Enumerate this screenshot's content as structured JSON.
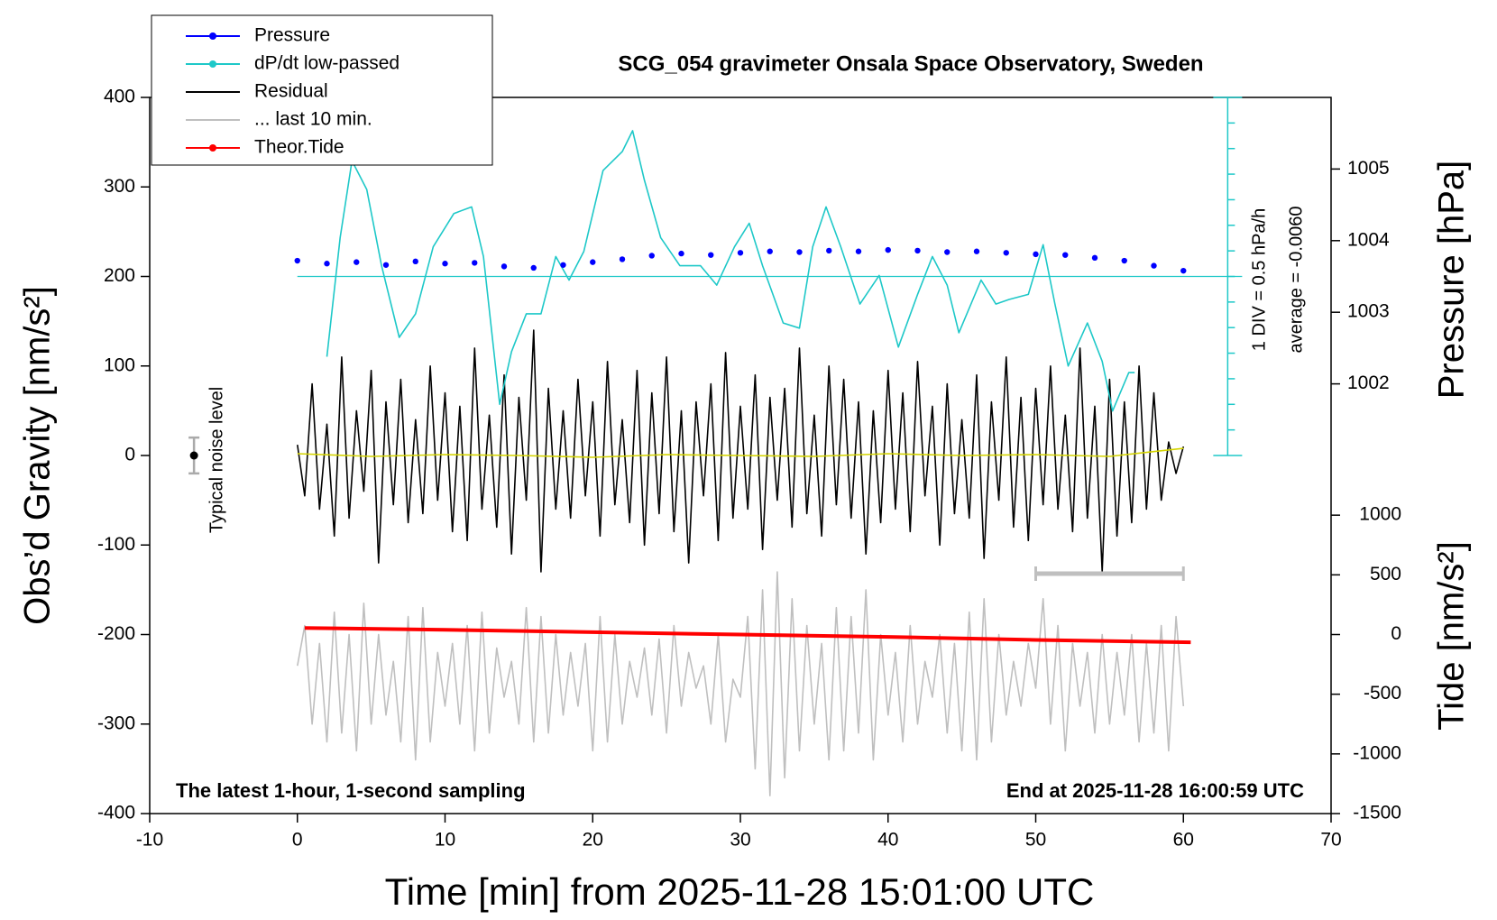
{
  "chart_data": {
    "type": "line",
    "title": "SCG_054 gravimeter Onsala Space Observatory, Sweden",
    "x_label": "Time [min] from 2025-11-28 15:01:00 UTC",
    "y_label": "Obs’d Gravity [nm/s²]",
    "y2_label": "Pressure [hPa]",
    "tide_label": "Tide [nm/s²]",
    "annotations": {
      "noise": "Typical noise level",
      "div": "1 DIV = 0.5 hPa/h",
      "average": "average = -0.0060",
      "bottom_left": "The latest 1-hour, 1-second sampling",
      "bottom_right": "End at 2025-11-28 16:00:59 UTC"
    },
    "xlim": [
      -10,
      70
    ],
    "xticks": [
      -10,
      0,
      10,
      20,
      30,
      40,
      50,
      60,
      70
    ],
    "ylim": [
      -400,
      400
    ],
    "yticks": [
      -400,
      -300,
      -200,
      -100,
      0,
      100,
      200,
      300,
      400
    ],
    "y2lim": [
      996,
      1006
    ],
    "y2ticks": [
      1002,
      1003,
      1004,
      1005
    ],
    "tide_lim": [
      -1500,
      4500
    ],
    "tide_ticks": [
      -1500,
      -1000,
      -500,
      0,
      500,
      1000
    ],
    "dpdt_lim": [
      -3.5,
      3.5
    ],
    "dpdt_ticks": [
      -3.5,
      -3,
      -2.5,
      -2,
      -1.5,
      -1,
      -0.5,
      0,
      0.5,
      1,
      1.5,
      2,
      2.5,
      3,
      3.5
    ],
    "dpdt_axis_x": 63,
    "noise": {
      "x": -7,
      "value": 0,
      "error": 20
    },
    "last10_bar": {
      "x": [
        50,
        60
      ],
      "y": -132
    },
    "series": [
      {
        "name": "... last 10 min.",
        "color": "#bfbfbf",
        "axis": "y",
        "x": [
          0,
          0.5,
          1,
          1.5,
          2,
          2.5,
          3,
          3.5,
          4,
          4.5,
          5,
          5.5,
          6,
          6.5,
          7,
          7.5,
          8,
          8.5,
          9,
          9.5,
          10,
          10.5,
          11,
          11.5,
          12,
          12.5,
          13,
          13.5,
          14,
          14.5,
          15,
          15.5,
          16,
          16.5,
          17,
          17.5,
          18,
          18.5,
          19,
          19.5,
          20,
          20.5,
          21,
          21.5,
          22,
          22.5,
          23,
          23.5,
          24,
          24.5,
          25,
          25.5,
          26,
          26.5,
          27,
          27.5,
          28,
          28.5,
          29,
          29.5,
          30,
          30.5,
          31,
          31.5,
          32,
          32.5,
          33,
          33.5,
          34,
          34.5,
          35,
          35.5,
          36,
          36.5,
          37,
          37.5,
          38,
          38.5,
          39,
          39.5,
          40,
          40.5,
          41,
          41.5,
          42,
          42.5,
          43,
          43.5,
          44,
          44.5,
          45,
          45.5,
          46,
          46.5,
          47,
          47.5,
          48,
          48.5,
          49,
          49.5,
          50,
          50.5,
          51,
          51.5,
          52,
          52.5,
          53,
          53.5,
          54,
          54.5,
          55,
          55.5,
          56,
          56.5,
          57,
          57.5,
          58,
          58.5,
          59,
          59.5,
          60
        ],
        "values": [
          -235,
          -190,
          -300,
          -210,
          -320,
          -175,
          -310,
          -200,
          -330,
          -165,
          -300,
          -200,
          -290,
          -230,
          -320,
          -180,
          -340,
          -170,
          -320,
          -220,
          -280,
          -210,
          -300,
          -190,
          -330,
          -175,
          -310,
          -215,
          -270,
          -230,
          -300,
          -170,
          -320,
          -180,
          -310,
          -200,
          -290,
          -220,
          -280,
          -210,
          -330,
          -180,
          -320,
          -200,
          -300,
          -230,
          -270,
          -215,
          -290,
          -205,
          -310,
          -190,
          -280,
          -220,
          -260,
          -235,
          -300,
          -200,
          -320,
          -250,
          -270,
          -180,
          -350,
          -150,
          -380,
          -130,
          -360,
          -160,
          -330,
          -190,
          -300,
          -210,
          -340,
          -170,
          -330,
          -180,
          -310,
          -150,
          -340,
          -200,
          -290,
          -220,
          -320,
          -190,
          -300,
          -230,
          -270,
          -200,
          -310,
          -210,
          -330,
          -175,
          -340,
          -160,
          -320,
          -200,
          -290,
          -230,
          -280,
          -210,
          -260,
          -160,
          -300,
          -190,
          -330,
          -210,
          -280,
          -220,
          -310,
          -200,
          -300,
          -220,
          -290,
          -200,
          -320,
          -210,
          -310,
          -190,
          -330,
          -180,
          -280
        ]
      },
      {
        "name": "Residual",
        "color": "#000000",
        "axis": "y",
        "x": [
          0,
          0.5,
          1,
          1.5,
          2,
          2.5,
          3,
          3.5,
          4,
          4.5,
          5,
          5.5,
          6,
          6.5,
          7,
          7.5,
          8,
          8.5,
          9,
          9.5,
          10,
          10.5,
          11,
          11.5,
          12,
          12.5,
          13,
          13.5,
          14,
          14.5,
          15,
          15.5,
          16,
          16.5,
          17,
          17.5,
          18,
          18.5,
          19,
          19.5,
          20,
          20.5,
          21,
          21.5,
          22,
          22.5,
          23,
          23.5,
          24,
          24.5,
          25,
          25.5,
          26,
          26.5,
          27,
          27.5,
          28,
          28.5,
          29,
          29.5,
          30,
          30.5,
          31,
          31.5,
          32,
          32.5,
          33,
          33.5,
          34,
          34.5,
          35,
          35.5,
          36,
          36.5,
          37,
          37.5,
          38,
          38.5,
          39,
          39.5,
          40,
          40.5,
          41,
          41.5,
          42,
          42.5,
          43,
          43.5,
          44,
          44.5,
          45,
          45.5,
          46,
          46.5,
          47,
          47.5,
          48,
          48.5,
          49,
          49.5,
          50,
          50.5,
          51,
          51.5,
          52,
          52.5,
          53,
          53.5,
          54,
          54.5,
          55,
          55.5,
          56,
          56.5,
          57,
          57.5,
          58,
          58.5,
          59,
          59.5,
          60
        ],
        "values": [
          12,
          -45,
          80,
          -60,
          35,
          -90,
          110,
          -70,
          50,
          -40,
          95,
          -120,
          60,
          -55,
          85,
          -75,
          40,
          -65,
          100,
          -50,
          70,
          -85,
          55,
          -95,
          120,
          -60,
          45,
          -80,
          90,
          -110,
          65,
          -50,
          140,
          -130,
          75,
          -60,
          50,
          -70,
          85,
          -45,
          60,
          -90,
          105,
          -55,
          40,
          -75,
          95,
          -100,
          70,
          -65,
          110,
          -85,
          50,
          -120,
          60,
          -45,
          80,
          -95,
          115,
          -70,
          55,
          -60,
          90,
          -105,
          65,
          -50,
          75,
          -80,
          120,
          -65,
          45,
          -90,
          100,
          -55,
          85,
          -70,
          60,
          -110,
          50,
          -75,
          95,
          -60,
          70,
          -85,
          105,
          -45,
          55,
          -100,
          80,
          -65,
          40,
          -70,
          90,
          -115,
          60,
          -50,
          110,
          -80,
          65,
          -95,
          75,
          -55,
          100,
          -60,
          45,
          -85,
          120,
          -70,
          55,
          -130,
          85,
          -90,
          60,
          -75,
          100,
          -60,
          70,
          -50,
          15,
          -20,
          10
        ]
      },
      {
        "color": "#d4d400",
        "axis": "y",
        "x": [
          0,
          5,
          10,
          15,
          20,
          25,
          30,
          35,
          40,
          45,
          50,
          55,
          60
        ],
        "values": [
          2,
          -1,
          1,
          0,
          -2,
          1,
          0,
          -1,
          2,
          0,
          1,
          -1,
          8
        ]
      },
      {
        "name": "Theor.Tide",
        "color": "#ff0000",
        "axis": "tide",
        "marker": true,
        "x": [
          0.5,
          10,
          20,
          30,
          40,
          50,
          60.5
        ],
        "values": [
          55,
          40,
          20,
          0,
          -20,
          -45,
          -65
        ]
      },
      {
        "name": "dP/dt low-passed",
        "color": "#1ec8c8",
        "axis": "dpdt",
        "marker": true,
        "x": [
          2.0,
          2.9,
          3.7,
          4.7,
          5.7,
          6.9,
          8.0,
          9.2,
          10.6,
          11.8,
          12.6,
          13.7,
          14.5,
          15.5,
          16.5,
          17.5,
          18.4,
          19.4,
          20.7,
          22.0,
          22.7,
          23.5,
          24.6,
          25.9,
          27.3,
          28.4,
          29.6,
          30.6,
          31.5,
          32.9,
          34.0,
          34.9,
          35.8,
          36.8,
          38.1,
          39.4,
          40.7,
          42.0,
          43.0,
          44.0,
          44.8,
          46.3,
          47.3,
          48.2,
          49.5,
          50.5,
          51.3,
          52.2,
          53.5,
          54.5,
          55.2,
          56.3,
          56.7
        ],
        "values": [
          -1.57,
          0.76,
          2.26,
          1.7,
          0.21,
          -1.19,
          -0.73,
          0.58,
          1.23,
          1.36,
          0.39,
          -2.5,
          -1.47,
          -0.73,
          -0.73,
          0.39,
          -0.07,
          0.49,
          2.07,
          2.44,
          2.85,
          1.88,
          0.76,
          0.21,
          0.21,
          -0.17,
          0.58,
          1.04,
          0.21,
          -0.91,
          -1.01,
          0.58,
          1.36,
          0.58,
          -0.54,
          0.02,
          -1.38,
          -0.35,
          0.39,
          -0.17,
          -1.1,
          -0.07,
          -0.54,
          -0.45,
          -0.35,
          0.62,
          -0.54,
          -1.75,
          -0.91,
          -1.66,
          -2.63,
          -1.88,
          -1.88
        ]
      },
      {
        "name": "Pressure",
        "color": "#0000ff",
        "axis": "y2",
        "marker": true,
        "dots": true,
        "x": [
          0,
          2,
          4,
          6,
          8,
          10,
          12,
          14,
          16,
          18,
          20,
          22,
          24,
          26,
          28,
          30,
          32,
          34,
          36,
          38,
          40,
          42,
          44,
          46,
          48,
          50,
          52,
          54,
          56,
          58,
          60
        ],
        "values": [
          1003.72,
          1003.68,
          1003.7,
          1003.66,
          1003.71,
          1003.68,
          1003.69,
          1003.64,
          1003.62,
          1003.66,
          1003.7,
          1003.74,
          1003.79,
          1003.82,
          1003.8,
          1003.83,
          1003.85,
          1003.84,
          1003.86,
          1003.85,
          1003.87,
          1003.86,
          1003.84,
          1003.85,
          1003.83,
          1003.81,
          1003.8,
          1003.76,
          1003.72,
          1003.65,
          1003.58
        ]
      }
    ],
    "legend_order": [
      5,
      4,
      1,
      0,
      3
    ]
  }
}
